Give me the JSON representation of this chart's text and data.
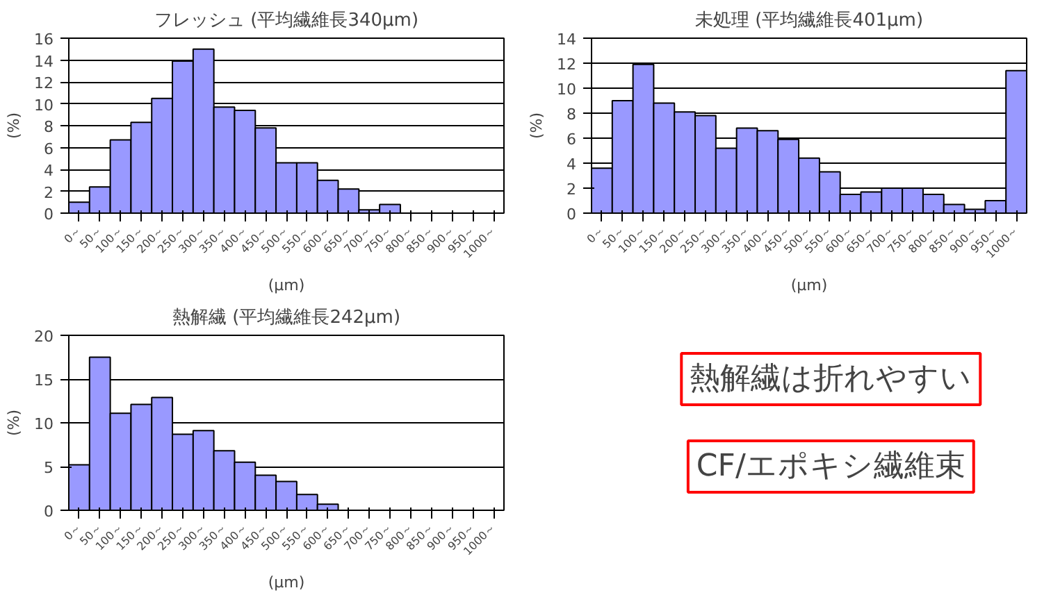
{
  "chart_data": [
    {
      "type": "bar",
      "title": "フレッシュ (平均繊維長340μm)",
      "xlabel": "(μm)",
      "ylabel": "(%)",
      "color": "#9999ff",
      "grid": "y",
      "categories": [
        "0～",
        "50～",
        "100～",
        "150～",
        "200～",
        "250～",
        "300～",
        "350～",
        "400～",
        "450～",
        "500～",
        "550～",
        "600～",
        "650～",
        "700～",
        "750～",
        "800～",
        "850～",
        "900～",
        "950～",
        "1000～"
      ],
      "values": [
        1.0,
        2.4,
        6.7,
        8.3,
        10.5,
        13.9,
        15.0,
        9.7,
        9.4,
        7.8,
        4.6,
        4.6,
        3.0,
        2.2,
        0.3,
        0.8,
        0,
        0,
        0,
        0,
        0
      ],
      "ylim": [
        0,
        16
      ],
      "yticks": [
        0,
        2,
        4,
        6,
        8,
        10,
        12,
        14,
        16
      ]
    },
    {
      "type": "bar",
      "title": "未処理 (平均繊維長401μm)",
      "xlabel": "(μm)",
      "ylabel": "(%)",
      "color": "#9999ff",
      "grid": "y",
      "categories": [
        "0～",
        "50～",
        "100～",
        "150～",
        "200～",
        "250～",
        "300～",
        "350～",
        "400～",
        "450～",
        "500～",
        "550～",
        "600～",
        "650～",
        "700～",
        "750～",
        "800～",
        "850～",
        "900～",
        "950～",
        "1000～"
      ],
      "values": [
        3.6,
        9.0,
        11.9,
        8.8,
        8.1,
        7.8,
        5.2,
        6.8,
        6.6,
        5.9,
        4.4,
        3.3,
        1.5,
        1.7,
        2.0,
        2.0,
        1.5,
        0.7,
        0.3,
        1.0,
        11.4
      ],
      "ylim": [
        0,
        14
      ],
      "yticks": [
        0,
        2,
        4,
        6,
        8,
        10,
        12,
        14
      ]
    },
    {
      "type": "bar",
      "title": "熱解繊 (平均繊維長242μm)",
      "xlabel": "(μm)",
      "ylabel": "(%)",
      "color": "#9999ff",
      "grid": "y",
      "categories": [
        "0～",
        "50～",
        "100～",
        "150～",
        "200～",
        "250～",
        "300～",
        "350～",
        "400～",
        "450～",
        "500～",
        "550～",
        "600～",
        "650～",
        "700～",
        "750～",
        "800～",
        "850～",
        "900～",
        "950～",
        "1000～"
      ],
      "values": [
        5.2,
        17.5,
        11.1,
        12.1,
        12.9,
        8.7,
        9.1,
        6.8,
        5.5,
        4.0,
        3.3,
        1.8,
        0.7,
        null,
        null,
        null,
        0,
        null,
        0,
        0,
        null
      ],
      "ylim": [
        0,
        20
      ],
      "yticks": [
        0,
        5,
        10,
        15,
        20
      ]
    },
    {
      "type": "other",
      "annotations": [
        "熱解繊は折れやすい",
        "CF/エポキシ繊維束"
      ]
    }
  ]
}
